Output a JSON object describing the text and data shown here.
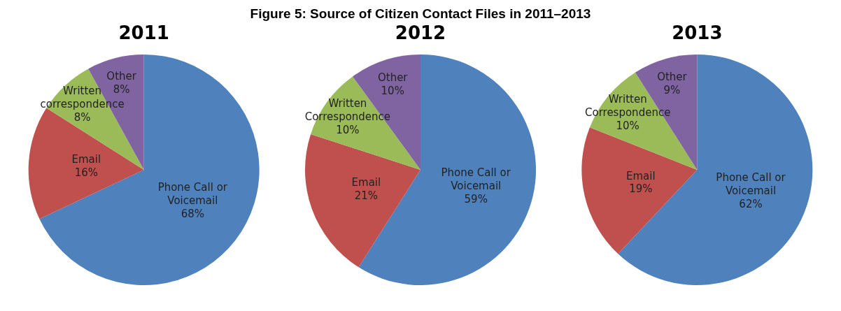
{
  "chart_data": [
    {
      "type": "pie",
      "title": "2011",
      "annotations": [
        "Figure 5: Source of Citizen Contact Files in 2011–2013"
      ],
      "categories": [
        "Phone Call or Voicemail",
        "Email",
        "Written correspondence",
        "Other"
      ],
      "values": [
        68,
        16,
        8,
        8
      ],
      "value_labels": [
        "68%",
        "16%",
        "8%",
        "8%"
      ],
      "colors": [
        "#4f81bd",
        "#c0504d",
        "#9bbb59",
        "#8064a2"
      ]
    },
    {
      "type": "pie",
      "title": "2012",
      "categories": [
        "Phone Call or Voicemail",
        "Email",
        "Written Correspondence",
        "Other"
      ],
      "values": [
        59,
        21,
        10,
        10
      ],
      "value_labels": [
        "59%",
        "21%",
        "10%",
        "10%"
      ],
      "colors": [
        "#4f81bd",
        "#c0504d",
        "#9bbb59",
        "#8064a2"
      ]
    },
    {
      "type": "pie",
      "title": "2013",
      "categories": [
        "Phone Call or Voicemail",
        "Email",
        "Written Correspondence",
        "Other"
      ],
      "values": [
        62,
        19,
        10,
        9
      ],
      "value_labels": [
        "62%",
        "19%",
        "10%",
        "9%"
      ],
      "colors": [
        "#4f81bd",
        "#c0504d",
        "#9bbb59",
        "#8064a2"
      ]
    }
  ]
}
